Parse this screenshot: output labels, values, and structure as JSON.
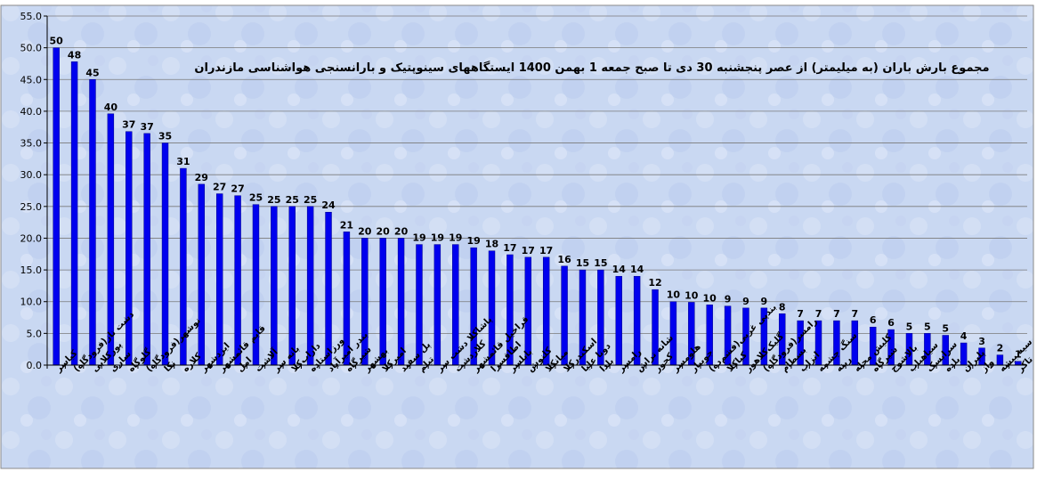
{
  "chart_data": {
    "type": "bar",
    "title": "مجموع بارش باران (به میلیمتر) از عصر پنجشنبه 30 دی تا صبح جمعه 1 بهمن 1400 ایستگاههای سینوپتیک و بارانسنجی هواشناسی مازندران",
    "xlabel": "",
    "ylabel": "",
    "ylim": [
      0,
      55
    ],
    "yticks": [
      "0.0",
      "5.0",
      "10.0",
      "15.0",
      "20.0",
      "25.0",
      "30.0",
      "35.0",
      "40.0",
      "45.0",
      "50.0",
      "55.0"
    ],
    "grid": true,
    "legend": "none",
    "bar_color": "#0000ee",
    "categories": [
      "کیاسر",
      "دشت ناز(فرودگاه)",
      "پورکلایی",
      "ساری",
      "گلوگاه",
      "نوشهر(فرودگاه)",
      "نکا",
      "کلاره",
      "ایزدشهر",
      "قایم قائمشهر",
      "امل",
      "آلاشت",
      "بانه سر",
      "داراب‌کلا",
      "ورزاستاده",
      "بندر امیرآباد",
      "شیرگاه",
      "بهشهر",
      "امیرکلا",
      "پل سفید",
      "تیلم",
      "پاشاکلا دشت سر",
      "کلاردشت",
      "قراخیل قائمشهر",
      "اطاقسرا",
      "بابلسر",
      "کلنوش",
      "میانکلا",
      "اسکندرکلا",
      "دونا علیا",
      "بلدا",
      "رامسر",
      "شانه تراش",
      "کجور",
      "هلومسر",
      "جویبار",
      "بندپی غربی(فشم‌ده)",
      "کیاکلا",
      "گلیک‌کلاهور",
      "رامسر(فرودگاه)",
      "بسطام",
      "انزاب",
      "سنگ چشمه",
      "رینه",
      "کلیش محله",
      "شیرگاه",
      "بالاشوج",
      "سیاهباب",
      "سرابسک",
      "بلده",
      "پلپران",
      "واز",
      "سیه بیشه",
      "تاکر"
    ],
    "values": [
      50,
      48,
      45,
      40,
      37,
      37,
      35,
      31,
      29,
      27,
      27,
      25,
      25,
      25,
      25,
      24,
      21,
      20,
      20,
      20,
      19,
      19,
      19,
      19,
      18,
      17,
      17,
      17,
      16,
      15,
      15,
      14,
      14,
      12,
      10,
      10,
      10,
      9,
      9,
      9,
      8,
      7,
      7,
      7,
      7,
      6,
      6,
      5,
      5,
      5,
      4,
      3,
      2,
      1
    ],
    "bar_heights": [
      50,
      47.8,
      45,
      39.6,
      36.8,
      36.5,
      35,
      31,
      28.5,
      27,
      26.7,
      25.3,
      25,
      25,
      25,
      24.1,
      21,
      20,
      20,
      20,
      19,
      19,
      19,
      18.5,
      18,
      17.4,
      17,
      17,
      15.6,
      15,
      15,
      14,
      14,
      11.9,
      10,
      9.9,
      9.5,
      9.3,
      9,
      9,
      8.1,
      7,
      7,
      7,
      7,
      6,
      5.6,
      5,
      5,
      4.7,
      3.5,
      2.7,
      1.6,
      0.6
    ],
    "value_labels": [
      "50",
      "48",
      "45",
      "40",
      "37",
      "37",
      "35",
      "31",
      "29",
      "27",
      "27",
      "25",
      "25",
      "25",
      "25",
      "24",
      "21",
      "20",
      "20",
      "20",
      "19",
      "19",
      "19",
      "19",
      "18",
      "17",
      "17",
      "17",
      "16",
      "15",
      "15",
      "14",
      "14",
      "12",
      "10",
      "10",
      "10",
      "9",
      "9",
      "9",
      "8",
      "7",
      "7",
      "7",
      "7",
      "6",
      "6",
      "5",
      "5",
      "5",
      "4",
      "3",
      "2",
      "1"
    ]
  }
}
